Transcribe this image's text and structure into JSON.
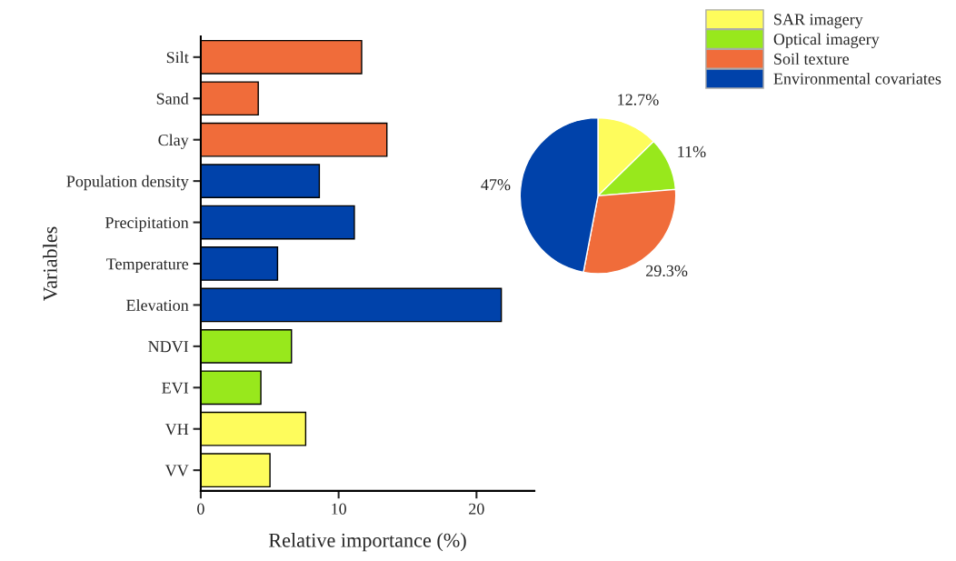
{
  "chart_data": [
    {
      "type": "bar",
      "orientation": "horizontal",
      "xlabel": "Relative importance (%)",
      "ylabel": "Variables",
      "categories": [
        "Silt",
        "Sand",
        "Clay",
        "Population density",
        "Precipitation",
        "Temperature",
        "Elevation",
        "NDVI",
        "EVI",
        "VH",
        "VV"
      ],
      "values": [
        11.67,
        4.17,
        13.5,
        8.6,
        11.14,
        5.57,
        21.8,
        6.58,
        4.36,
        7.61,
        5.02
      ],
      "colors": [
        "#f06c3a",
        "#f06c3a",
        "#f06c3a",
        "#0042aa",
        "#0042aa",
        "#0042aa",
        "#0042aa",
        "#98e81c",
        "#98e81c",
        "#fefc5c",
        "#fefc5c"
      ],
      "xlim": [
        0,
        24.2
      ],
      "xticks": [
        0,
        10,
        20
      ],
      "grid": false,
      "legend": false
    },
    {
      "type": "pie",
      "categories": [
        "SAR imagery",
        "Optical imagery",
        "Soil texture",
        "Environmental covariates"
      ],
      "values": [
        12.7,
        11,
        29.3,
        47
      ],
      "value_labels": [
        "12.7%",
        "11%",
        "29.3%",
        "47%"
      ],
      "colors": [
        "#fefc5c",
        "#98e81c",
        "#f06c3a",
        "#0042aa"
      ],
      "legend": "top right"
    }
  ]
}
